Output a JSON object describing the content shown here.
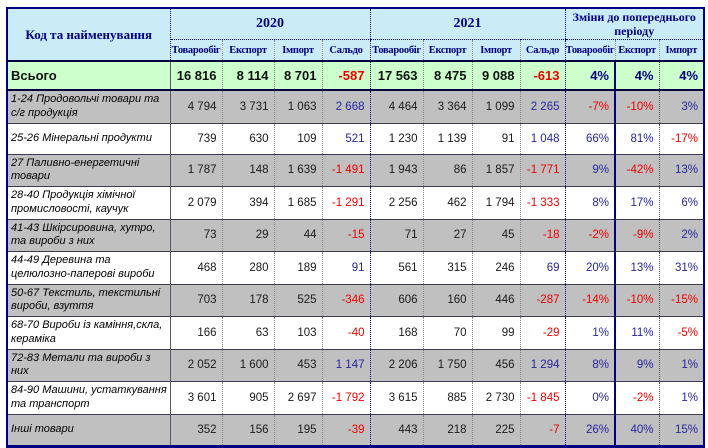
{
  "table": {
    "corner_header": "Код та найменування",
    "groups": [
      {
        "label": "2020",
        "columns": [
          "Товарообіг",
          "Експорт",
          "Імпорт",
          "Сальдо"
        ]
      },
      {
        "label": "2021",
        "columns": [
          "Товарообіг",
          "Експорт",
          "Імпорт",
          "Сальдо"
        ]
      },
      {
        "label": "Зміни до попереднього періоду",
        "columns": [
          "Товарообіг",
          "Експорт",
          "Імпорт"
        ]
      }
    ],
    "totals": {
      "label": "Всього",
      "values": [
        "16 816",
        "8 114",
        "8 701",
        "-587",
        "17 563",
        "8 475",
        "9 088",
        "-613",
        "4%",
        "4%",
        "4%"
      ]
    },
    "rows": [
      {
        "label": "1-24 Продовольчі товари та с/г продукція",
        "values": [
          "4 794",
          "3 731",
          "1 063",
          "2 668",
          "4 464",
          "3 364",
          "1 099",
          "2 265",
          "-7%",
          "-10%",
          "3%"
        ]
      },
      {
        "label": "25-26 Мінеральні продукти",
        "values": [
          "739",
          "630",
          "109",
          "521",
          "1 230",
          "1 139",
          "91",
          "1 048",
          "66%",
          "81%",
          "-17%"
        ]
      },
      {
        "label": "27 Паливно-енергетичні товари",
        "values": [
          "1 787",
          "148",
          "1 639",
          "-1 491",
          "1 943",
          "86",
          "1 857",
          "-1 771",
          "9%",
          "-42%",
          "13%"
        ]
      },
      {
        "label": "28-40 Продукція хімічної промисловості, каучук",
        "values": [
          "2 079",
          "394",
          "1 685",
          "-1 291",
          "2 256",
          "462",
          "1 794",
          "-1 333",
          "8%",
          "17%",
          "6%"
        ]
      },
      {
        "label": "41-43 Шкірсировина, хутро, та вироби з них",
        "values": [
          "73",
          "29",
          "44",
          "-15",
          "71",
          "27",
          "45",
          "-18",
          "-2%",
          "-9%",
          "2%"
        ]
      },
      {
        "label": "44-49 Деревина та целюлозно-паперові вироби",
        "values": [
          "468",
          "280",
          "189",
          "91",
          "561",
          "315",
          "246",
          "69",
          "20%",
          "13%",
          "31%"
        ]
      },
      {
        "label": "50-67 Текстиль, текстильні вироби, взуття",
        "values": [
          "703",
          "178",
          "525",
          "-346",
          "606",
          "160",
          "446",
          "-287",
          "-14%",
          "-10%",
          "-15%"
        ]
      },
      {
        "label": "68-70 Вироби із каміння,скла, кераміка",
        "values": [
          "166",
          "63",
          "103",
          "-40",
          "168",
          "70",
          "99",
          "-29",
          "1%",
          "11%",
          "-5%"
        ]
      },
      {
        "label": "72-83 Метали та вироби з них",
        "values": [
          "2 052",
          "1 600",
          "453",
          "1 147",
          "2 206",
          "1 750",
          "456",
          "1 294",
          "8%",
          "9%",
          "1%"
        ]
      },
      {
        "label": "84-90 Машини, устаткування та транспорт",
        "values": [
          "3 601",
          "905",
          "2 697",
          "-1 792",
          "3 615",
          "885",
          "2 730",
          "-1 845",
          "0%",
          "-2%",
          "1%"
        ]
      },
      {
        "label": "Інші товари",
        "values": [
          "352",
          "156",
          "195",
          "-39",
          "443",
          "218",
          "225",
          "-7",
          "26%",
          "40%",
          "15%"
        ]
      }
    ]
  },
  "colors": {
    "header_bg": "#c9ecf6",
    "totals_bg": "#ccffcc",
    "shaded_row": "#c0c0c0",
    "navy": "#000080",
    "positive": "#2626a0",
    "negative": "#ee0000"
  }
}
